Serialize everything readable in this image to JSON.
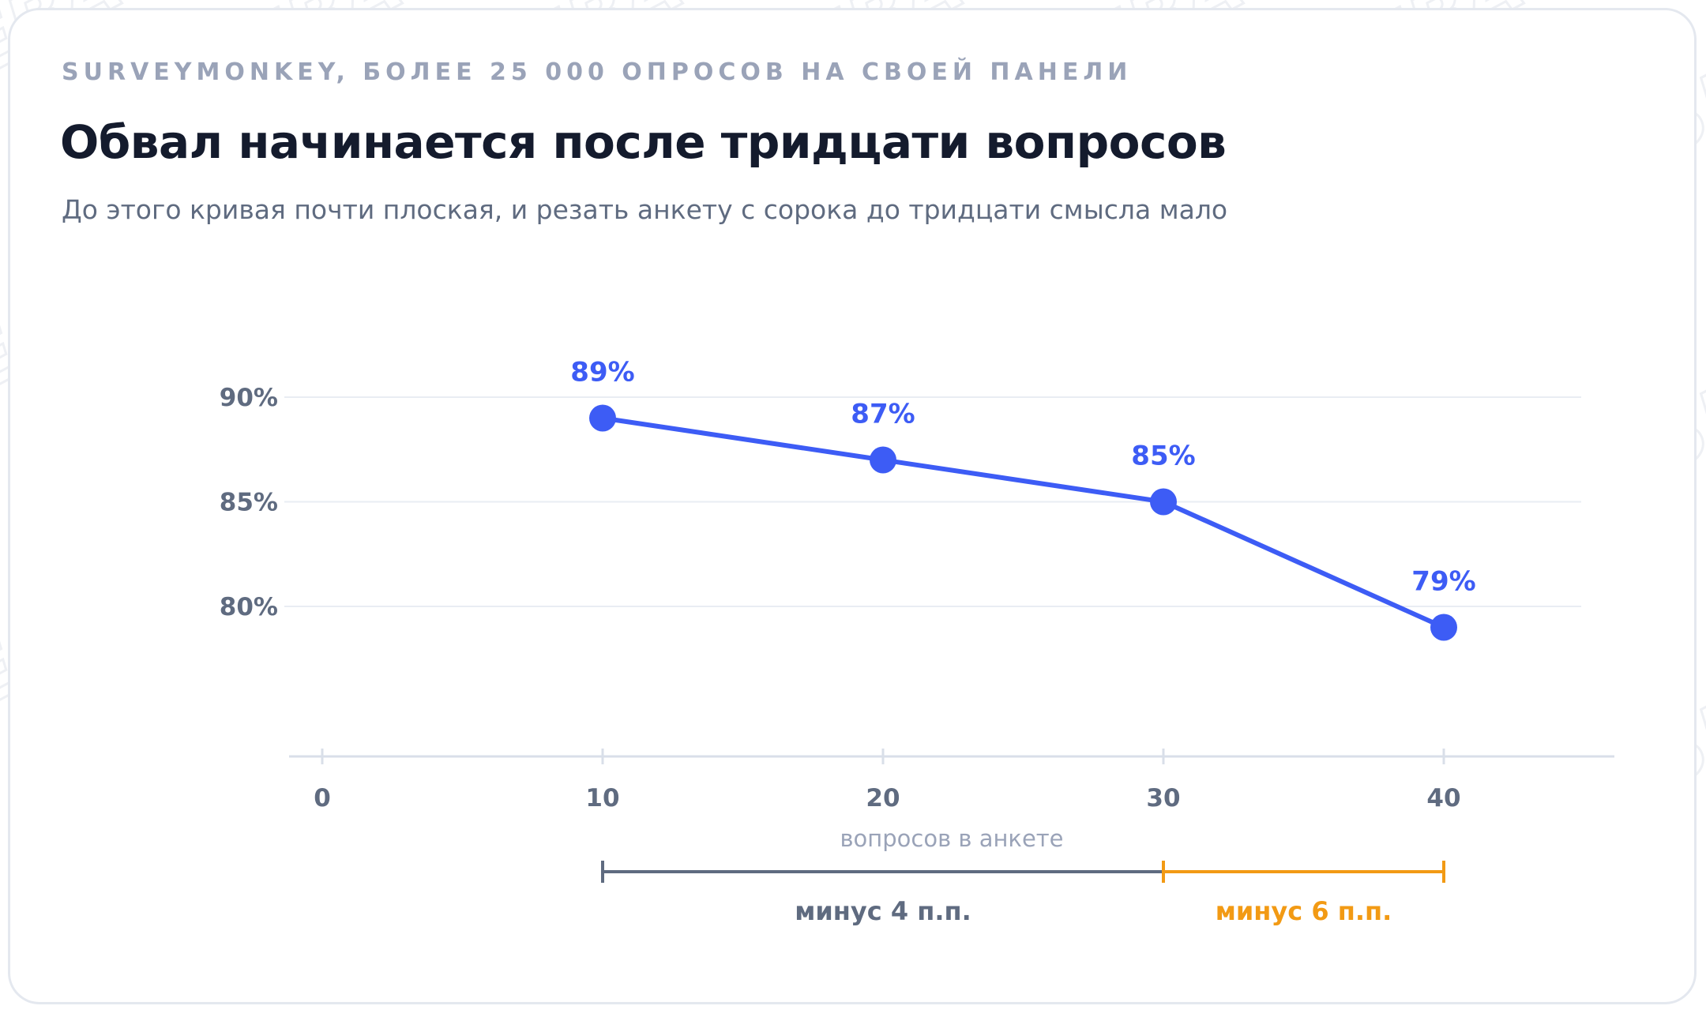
{
  "header": {
    "kicker": "SURVEYMONKEY, БОЛЕЕ 25 000 ОПРОСОВ НА СВОЕЙ ПАНЕЛИ",
    "title": "Обвал начинается после тридцати вопросов",
    "subtitle": "До этого кривая почти плоская, и резать анкету с сорока до тридцати смысла мало"
  },
  "watermark": "WEBASK",
  "colors": {
    "line": "#3d5cf5",
    "axis": "#d9dfe9",
    "grid": "#e9edf3",
    "tick_text": "#5f6b80",
    "range_gray": "#5f6b80",
    "range_orange": "#f29a14"
  },
  "chart_data": {
    "type": "line",
    "xlabel": "вопросов в анкете",
    "ylabel": "",
    "x_ticks": [
      "0",
      "10",
      "20",
      "30",
      "40"
    ],
    "x_tick_values": [
      0,
      10,
      20,
      30,
      40
    ],
    "y_ticks": [
      "90%",
      "85%",
      "80%"
    ],
    "y_tick_values": [
      90,
      85,
      80
    ],
    "xlim": [
      0,
      40
    ],
    "ylim": [
      80,
      90
    ],
    "grid": true,
    "series": [
      {
        "x": [
          10,
          20,
          30,
          40
        ],
        "values": [
          89,
          87,
          85,
          79
        ],
        "labels": [
          "89%",
          "87%",
          "85%",
          "79%"
        ]
      }
    ],
    "annotations": [
      {
        "from": 10,
        "to": 30,
        "text": "минус 4 п.п.",
        "color": "gray"
      },
      {
        "from": 30,
        "to": 40,
        "text": "минус 6 п.п.",
        "color": "orange"
      }
    ]
  }
}
